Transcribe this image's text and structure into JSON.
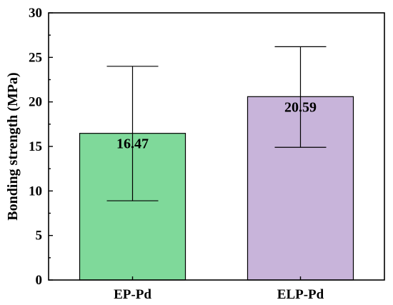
{
  "chart_data": {
    "type": "bar",
    "categories": [
      "EP-Pd",
      "ELP-Pd"
    ],
    "values": [
      16.47,
      20.59
    ],
    "data_labels": [
      "16.47",
      "20.59"
    ],
    "error_upper": [
      24.0,
      26.2
    ],
    "error_lower": [
      8.9,
      14.9
    ],
    "colors": [
      "#7fd99a",
      "#c8b4da"
    ],
    "ylabel": "Bonding strength (MPa)",
    "xlabel": "",
    "ylim": [
      0,
      30
    ],
    "yticks": [
      0,
      5,
      10,
      15,
      20,
      25,
      30
    ],
    "ytick_labels": [
      "0",
      "5",
      "10",
      "15",
      "20",
      "25",
      "30"
    ],
    "grid": false,
    "legend": "none"
  }
}
